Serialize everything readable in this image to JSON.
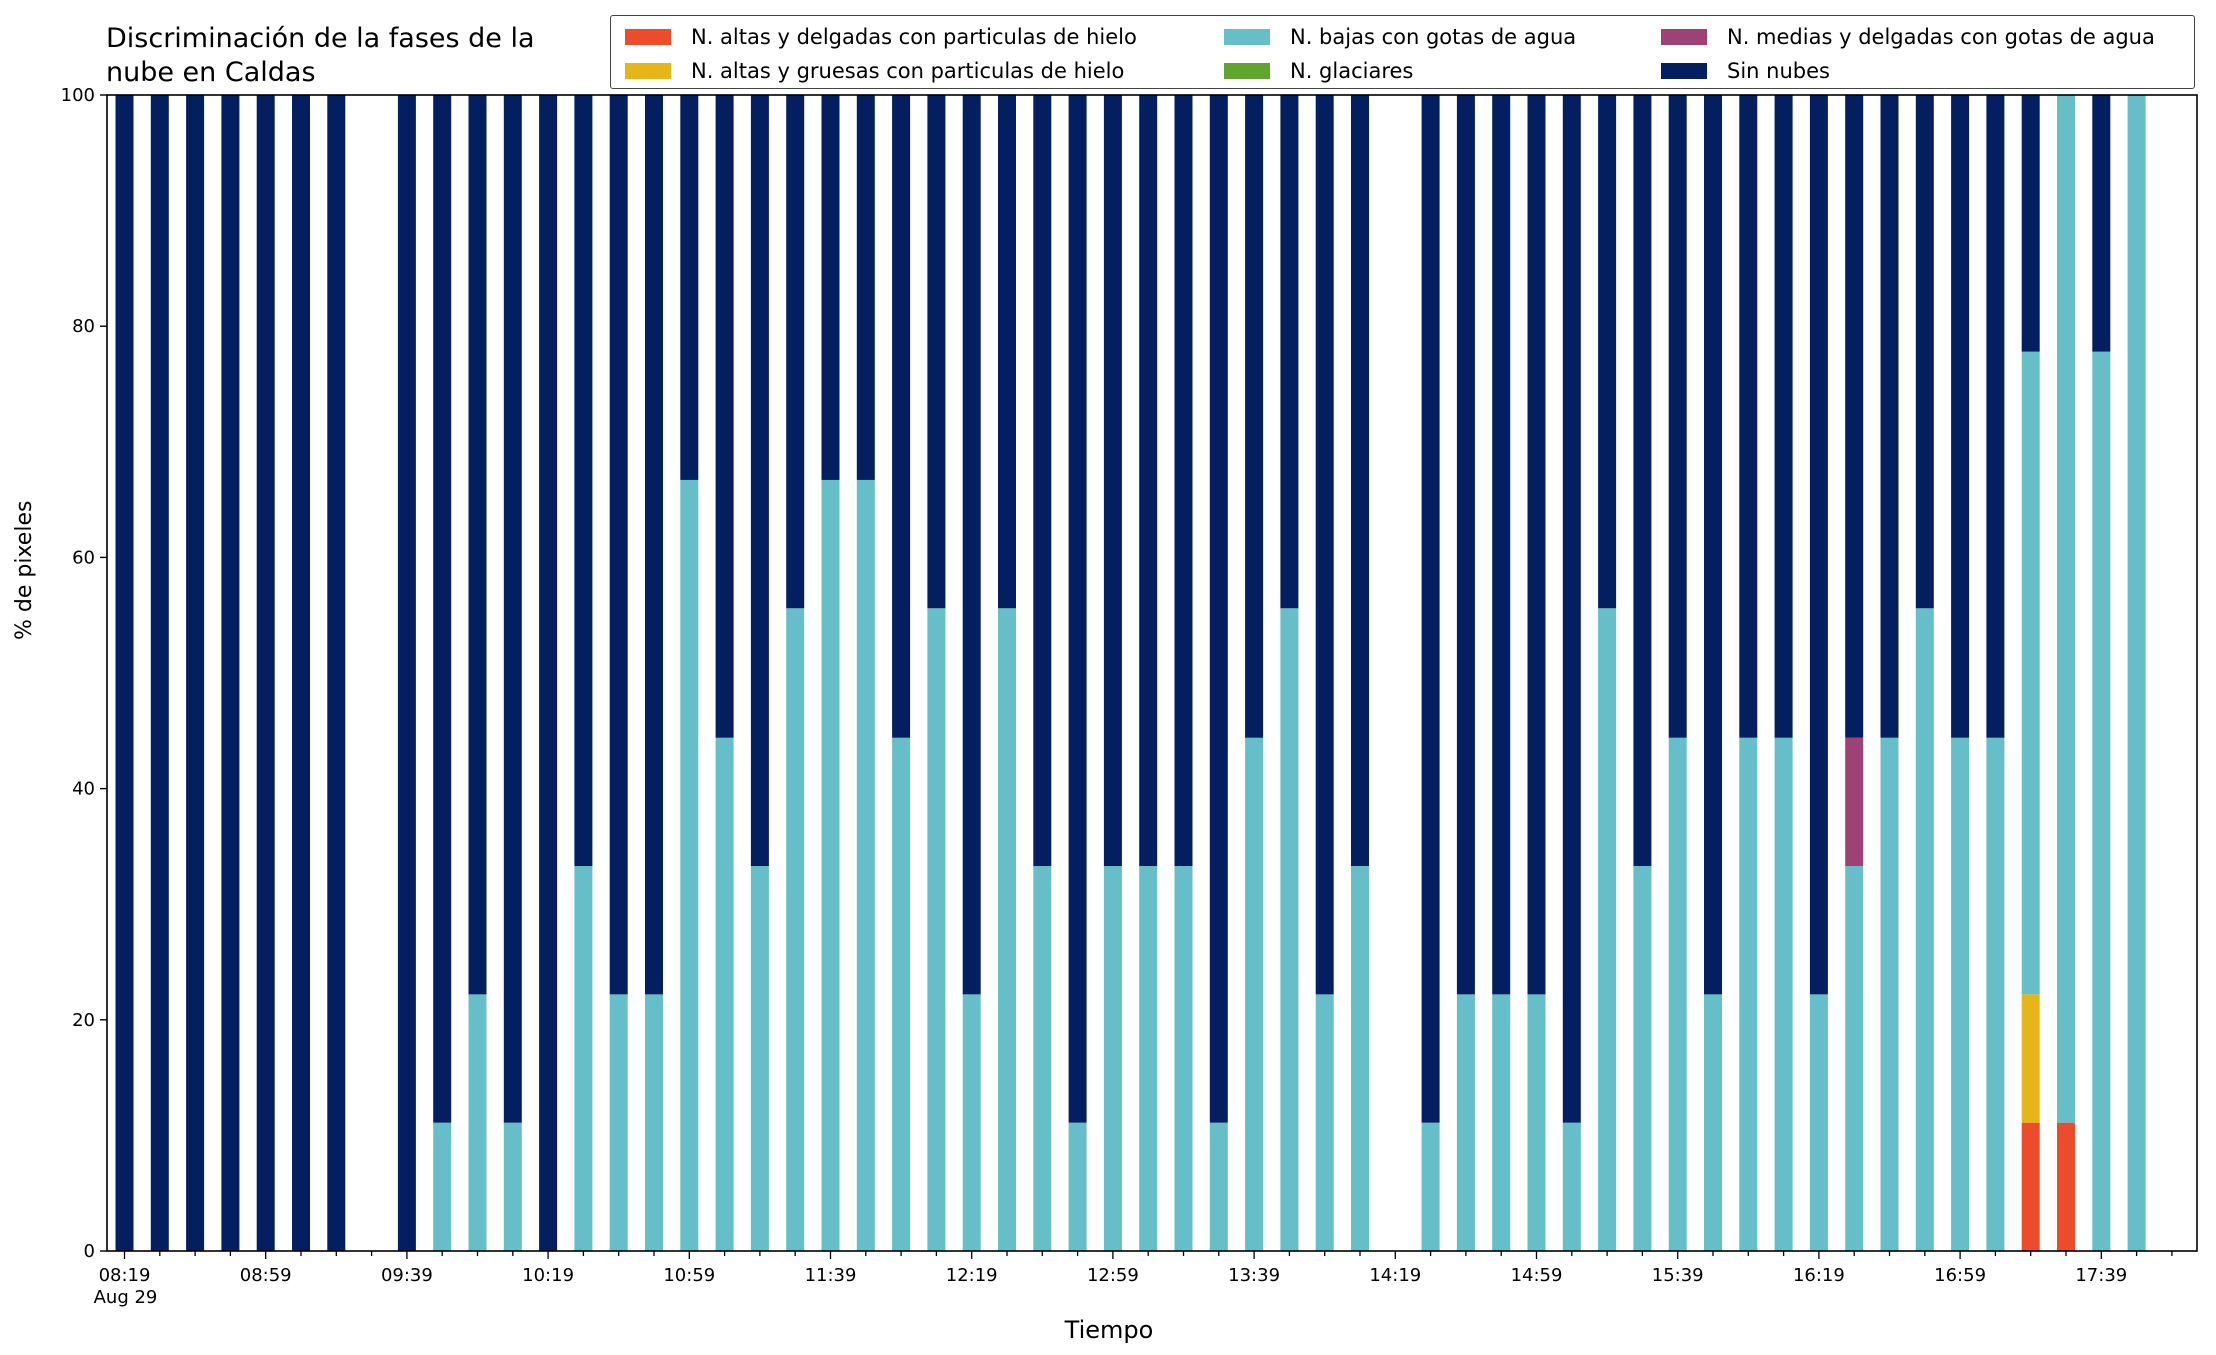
{
  "chart_data": {
    "type": "bar",
    "stacked": true,
    "title": "Discriminación de la fases de la\nnube en Caldas",
    "xlabel": "Tiempo",
    "ylabel": "% de pixeles",
    "ylim": [
      0,
      100
    ],
    "yticks": [
      0,
      20,
      40,
      60,
      80,
      100
    ],
    "xtick_labels": [
      "08:19\nAug 29",
      "08:59",
      "09:39",
      "10:19",
      "10:59",
      "11:39",
      "12:19",
      "12:59",
      "13:39",
      "14:19",
      "14:59",
      "15:39",
      "16:19",
      "16:59",
      "17:39"
    ],
    "grid": false,
    "legend_position": "top-right",
    "interval_minutes": 10,
    "start": "08:19",
    "slots": 59,
    "series": [
      {
        "name": "N. altas y delgadas con particulas de hielo",
        "color": "#ec4b2c"
      },
      {
        "name": "N. altas y gruesas con particulas de hielo",
        "color": "#e6b619"
      },
      {
        "name": "N. bajas con gotas de agua",
        "color": "#66bec9"
      },
      {
        "name": "N. glaciares",
        "color": "#5fa52e"
      },
      {
        "name": "N. medias y delgadas con gotas de agua",
        "color": "#9e4175"
      },
      {
        "name": "Sin nubes",
        "color": "#041f5f"
      }
    ],
    "legend_order": [
      "N. altas y delgadas con particulas de hielo",
      "N. altas y gruesas con particulas de hielo",
      "N. bajas con gotas de agua",
      "N. glaciares",
      "N. medias y delgadas con gotas de agua",
      "Sin nubes"
    ],
    "bars": [
      {
        "time": "08:19",
        "values": [
          0,
          0,
          0,
          0,
          0,
          100
        ]
      },
      {
        "time": "08:29",
        "values": [
          0,
          0,
          0,
          0,
          0,
          100
        ]
      },
      {
        "time": "08:39",
        "values": [
          0,
          0,
          0,
          0,
          0,
          100
        ]
      },
      {
        "time": "08:49",
        "values": [
          0,
          0,
          0,
          0,
          0,
          100
        ]
      },
      {
        "time": "08:59",
        "values": [
          0,
          0,
          0,
          0,
          0,
          100
        ]
      },
      {
        "time": "09:09",
        "values": [
          0,
          0,
          0,
          0,
          0,
          100
        ]
      },
      {
        "time": "09:19",
        "values": [
          0,
          0,
          0,
          0,
          0,
          100
        ]
      },
      {
        "time": "09:39",
        "values": [
          0,
          0,
          0,
          0,
          0,
          100
        ]
      },
      {
        "time": "09:49",
        "values": [
          0,
          0,
          11.1,
          0,
          0,
          88.9
        ]
      },
      {
        "time": "09:59",
        "values": [
          0,
          0,
          22.2,
          0,
          0,
          77.8
        ]
      },
      {
        "time": "10:09",
        "values": [
          0,
          0,
          11.1,
          0,
          0,
          88.9
        ]
      },
      {
        "time": "10:19",
        "values": [
          0,
          0,
          0,
          0,
          0,
          100
        ]
      },
      {
        "time": "10:29",
        "values": [
          0,
          0,
          33.3,
          0,
          0,
          66.7
        ]
      },
      {
        "time": "10:39",
        "values": [
          0,
          0,
          22.2,
          0,
          0,
          77.8
        ]
      },
      {
        "time": "10:49",
        "values": [
          0,
          0,
          22.2,
          0,
          0,
          77.8
        ]
      },
      {
        "time": "10:59",
        "values": [
          0,
          0,
          66.7,
          0,
          0,
          33.3
        ]
      },
      {
        "time": "11:09",
        "values": [
          0,
          0,
          44.4,
          0,
          0,
          55.6
        ]
      },
      {
        "time": "11:19",
        "values": [
          0,
          0,
          33.3,
          0,
          0,
          66.7
        ]
      },
      {
        "time": "11:29",
        "values": [
          0,
          0,
          55.6,
          0,
          0,
          44.4
        ]
      },
      {
        "time": "11:39",
        "values": [
          0,
          0,
          66.7,
          0,
          0,
          33.3
        ]
      },
      {
        "time": "11:49",
        "values": [
          0,
          0,
          66.7,
          0,
          0,
          33.3
        ]
      },
      {
        "time": "11:59",
        "values": [
          0,
          0,
          44.4,
          0,
          0,
          55.6
        ]
      },
      {
        "time": "12:09",
        "values": [
          0,
          0,
          55.6,
          0,
          0,
          44.4
        ]
      },
      {
        "time": "12:19",
        "values": [
          0,
          0,
          22.2,
          0,
          0,
          77.8
        ]
      },
      {
        "time": "12:29",
        "values": [
          0,
          0,
          55.6,
          0,
          0,
          44.4
        ]
      },
      {
        "time": "12:39",
        "values": [
          0,
          0,
          33.3,
          0,
          0,
          66.7
        ]
      },
      {
        "time": "12:49",
        "values": [
          0,
          0,
          11.1,
          0,
          0,
          88.9
        ]
      },
      {
        "time": "12:59",
        "values": [
          0,
          0,
          33.3,
          0,
          0,
          66.7
        ]
      },
      {
        "time": "13:09",
        "values": [
          0,
          0,
          33.3,
          0,
          0,
          66.7
        ]
      },
      {
        "time": "13:19",
        "values": [
          0,
          0,
          33.3,
          0,
          0,
          66.7
        ]
      },
      {
        "time": "13:29",
        "values": [
          0,
          0,
          11.1,
          0,
          0,
          88.9
        ]
      },
      {
        "time": "13:39",
        "values": [
          0,
          0,
          44.4,
          0,
          0,
          55.6
        ]
      },
      {
        "time": "13:49",
        "values": [
          0,
          0,
          55.6,
          0,
          0,
          44.4
        ]
      },
      {
        "time": "13:59",
        "values": [
          0,
          0,
          22.2,
          0,
          0,
          77.8
        ]
      },
      {
        "time": "14:09",
        "values": [
          0,
          0,
          33.3,
          0,
          0,
          66.7
        ]
      },
      {
        "time": "14:29",
        "values": [
          0,
          0,
          11.1,
          0,
          0,
          88.9
        ]
      },
      {
        "time": "14:39",
        "values": [
          0,
          0,
          22.2,
          0,
          0,
          77.8
        ]
      },
      {
        "time": "14:49",
        "values": [
          0,
          0,
          22.2,
          0,
          0,
          77.8
        ]
      },
      {
        "time": "14:59",
        "values": [
          0,
          0,
          22.2,
          0,
          0,
          77.8
        ]
      },
      {
        "time": "15:09",
        "values": [
          0,
          0,
          11.1,
          0,
          0,
          88.9
        ]
      },
      {
        "time": "15:19",
        "values": [
          0,
          0,
          55.6,
          0,
          0,
          44.4
        ]
      },
      {
        "time": "15:29",
        "values": [
          0,
          0,
          33.3,
          0,
          0,
          66.7
        ]
      },
      {
        "time": "15:39",
        "values": [
          0,
          0,
          44.4,
          0,
          0,
          55.6
        ]
      },
      {
        "time": "15:49",
        "values": [
          0,
          0,
          22.2,
          0,
          0,
          77.8
        ]
      },
      {
        "time": "15:59",
        "values": [
          0,
          0,
          44.4,
          0,
          0,
          55.6
        ]
      },
      {
        "time": "16:09",
        "values": [
          0,
          0,
          44.4,
          0,
          0,
          55.6
        ]
      },
      {
        "time": "16:19",
        "values": [
          0,
          0,
          22.2,
          0,
          0,
          77.8
        ]
      },
      {
        "time": "16:29",
        "values": [
          0,
          0,
          33.3,
          0,
          11.1,
          55.6
        ]
      },
      {
        "time": "16:39",
        "values": [
          0,
          0,
          44.4,
          0,
          0,
          55.6
        ]
      },
      {
        "time": "16:49",
        "values": [
          0,
          0,
          55.6,
          0,
          0,
          44.4
        ]
      },
      {
        "time": "16:59",
        "values": [
          0,
          0,
          44.4,
          0,
          0,
          55.6
        ]
      },
      {
        "time": "17:09",
        "values": [
          0,
          0,
          44.4,
          0,
          0,
          55.6
        ]
      },
      {
        "time": "17:19",
        "values": [
          11.1,
          11.1,
          55.6,
          0,
          0,
          22.2
        ]
      },
      {
        "time": "17:29",
        "values": [
          11.1,
          0,
          88.9,
          0,
          0,
          0
        ]
      },
      {
        "time": "17:39",
        "values": [
          0,
          0,
          77.8,
          0,
          0,
          22.2
        ]
      },
      {
        "time": "17:49",
        "values": [
          0,
          0,
          100,
          0,
          0,
          0
        ]
      }
    ]
  }
}
